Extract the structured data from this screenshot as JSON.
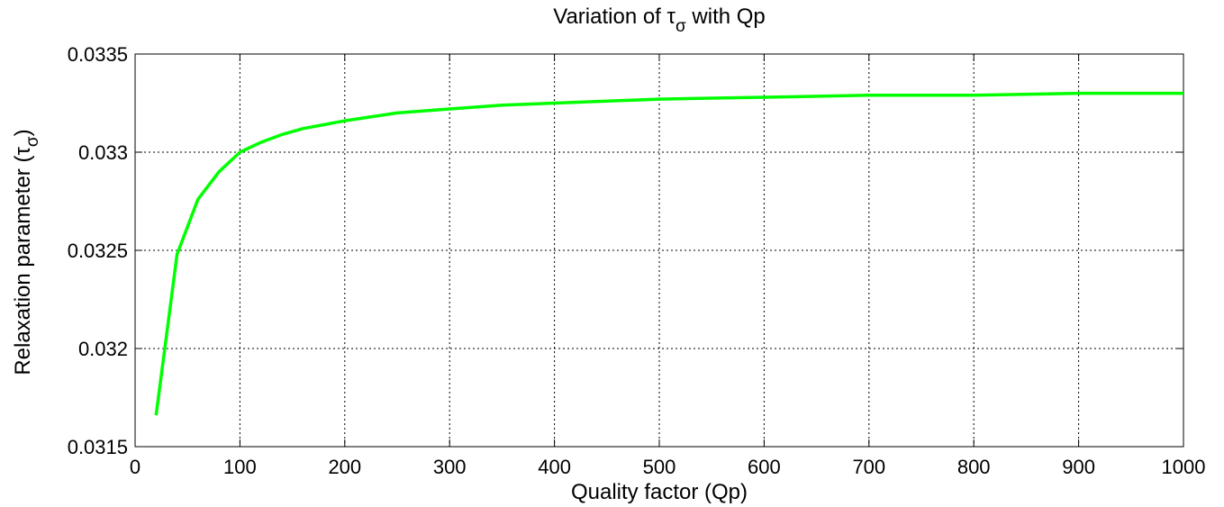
{
  "chart_data": {
    "type": "line",
    "title": {
      "prefix": "Variation of ",
      "symbol": "τ",
      "subscript": "σ",
      "suffix": " with Qp"
    },
    "xlabel": "Quality factor (Qp)",
    "ylabel": {
      "prefix": "Relaxation parameter (",
      "symbol": "τ",
      "subscript": "σ",
      "suffix": ")"
    },
    "xlim": [
      0,
      1000
    ],
    "ylim": [
      0.0315,
      0.0335
    ],
    "xticks": [
      0,
      100,
      200,
      300,
      400,
      500,
      600,
      700,
      800,
      900,
      1000
    ],
    "xtick_labels": [
      "0",
      "100",
      "200",
      "300",
      "400",
      "500",
      "600",
      "700",
      "800",
      "900",
      "1000"
    ],
    "yticks": [
      0.0315,
      0.032,
      0.0325,
      0.033,
      0.0335
    ],
    "ytick_labels": [
      "0.0315",
      "0.032",
      "0.0325",
      "0.033",
      "0.0335"
    ],
    "grid": true,
    "line_color": "#00ff00",
    "series": [
      {
        "x": [
          20,
          40,
          60,
          80,
          100,
          120,
          140,
          160,
          180,
          200,
          250,
          300,
          350,
          400,
          450,
          500,
          600,
          700,
          800,
          900,
          1000
        ],
        "values": [
          0.03166,
          0.03248,
          0.03276,
          0.0329,
          0.033,
          0.03305,
          0.03309,
          0.03312,
          0.03314,
          0.03316,
          0.0332,
          0.03322,
          0.03324,
          0.03325,
          0.03326,
          0.03327,
          0.03328,
          0.03329,
          0.03329,
          0.0333,
          0.0333
        ]
      }
    ]
  }
}
